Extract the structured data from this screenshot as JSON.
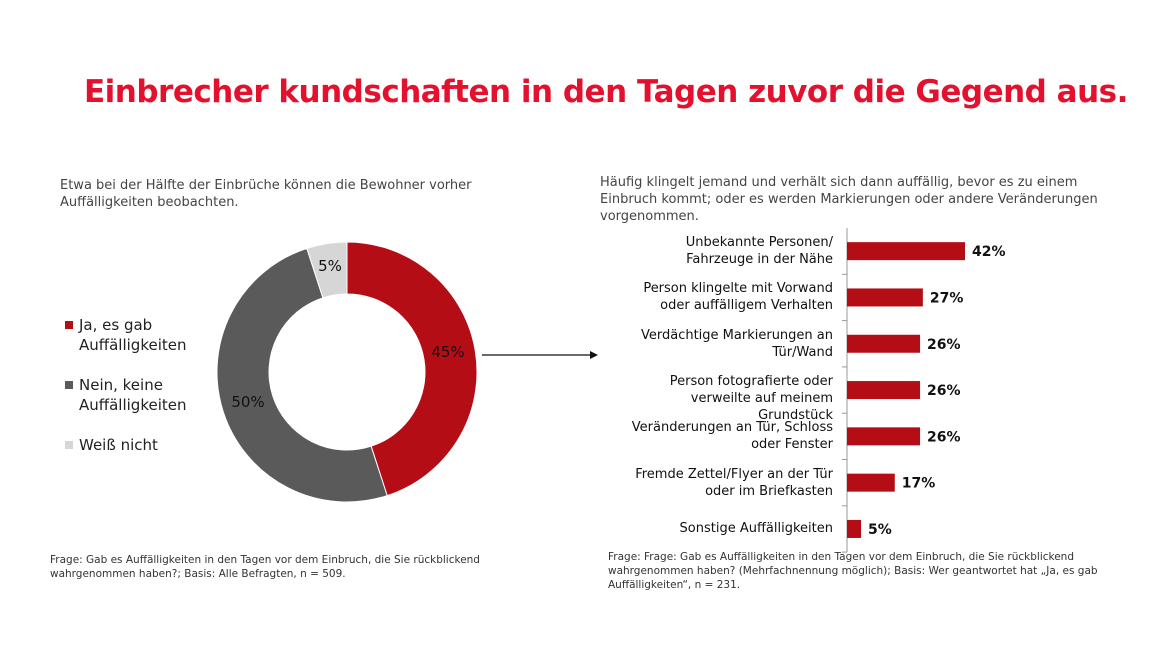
{
  "title": "Einbrecher kundschaften in den Tagen zuvor die Gegend aus.",
  "left": {
    "subtitle": "Etwa bei der Hälfte der Einbrüche können die Bewohner vorher Auffälligkeiten beobachten.",
    "footnote": "Frage: Gab es Auffälligkeiten in den Tagen vor dem Einbruch, die Sie rückblickend wahrgenommen haben?; Basis: Alle Befragten, n = 509."
  },
  "right": {
    "subtitle": "Häufig klingelt jemand und verhält sich dann auffällig, bevor es zu einem Einbruch kommt; oder es werden Markierungen oder andere Veränderungen vorgenommen.",
    "footnote": "Frage: Frage: Gab es Auffälligkeiten in den Tagen vor dem Einbruch, die Sie rückblickend wahrgenommen haben? (Mehrfachnennung möglich); Basis: Wer geantwortet hat „Ja, es gab Auffälligkeiten“, n = 231."
  },
  "chart_data": [
    {
      "type": "pie",
      "donut": true,
      "labels": [
        "Ja, es gab Auffälligkeiten",
        "Nein, keine Auffälligkeiten",
        "Weiß nicht"
      ],
      "values": [
        45,
        50,
        5
      ],
      "data_labels": [
        "45%",
        "50%",
        "5%"
      ],
      "colors": [
        "#b50d16",
        "#5a5a5a",
        "#d6d6d6"
      ],
      "legend": "left"
    },
    {
      "type": "bar",
      "orientation": "horizontal",
      "categories": [
        "Unbekannte Personen/ Fahrzeuge in der Nähe",
        "Person klingelte mit Vorwand oder auffälligem Verhalten",
        "Verdächtige Markierungen an Tür/Wand",
        "Person fotografierte oder verweilte auf meinem Grundstück",
        "Veränderungen an Tür, Schloss oder Fenster",
        "Fremde Zettel/Flyer an der Tür oder im Briefkasten",
        "Sonstige Auffälligkeiten"
      ],
      "values": [
        42,
        27,
        26,
        26,
        26,
        17,
        5
      ],
      "data_labels": [
        "42%",
        "27%",
        "26%",
        "26%",
        "26%",
        "17%",
        "5%"
      ],
      "color": "#b50d16",
      "unit": "%"
    }
  ]
}
